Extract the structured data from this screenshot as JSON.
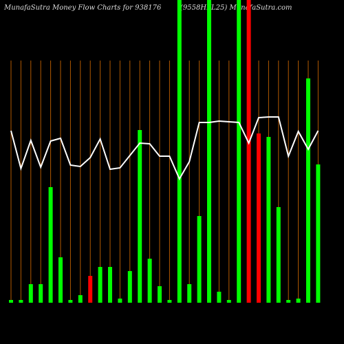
{
  "chart_data": {
    "type": "bar",
    "title": "MunafaSutra  Money Flow  Charts for 938176",
    "subtitle": "(9558HFL25) MunafaSutra.com",
    "categories": [
      null,
      null,
      null,
      null,
      null,
      null,
      null,
      null,
      null,
      null,
      null,
      null,
      null,
      null,
      null,
      null,
      null,
      null,
      null,
      null,
      null,
      null,
      null,
      null,
      null,
      null,
      null,
      null,
      null,
      null,
      null,
      null
    ],
    "ylim": [
      0,
      440
    ],
    "series": [
      {
        "type": "bar",
        "colors": [
          "#00ff00",
          "#00ff00",
          "#00ff00",
          "#00ff00",
          "#00ff00",
          "#00ff00",
          "#00ff00",
          "#00ff00",
          "#ff0000",
          "#00ff00",
          "#00ff00",
          "#00ff00",
          "#00ff00",
          "#00ff00",
          "#00ff00",
          "#00ff00",
          "#00ff00",
          "#00ff00",
          "#00ff00",
          "#00ff00",
          "#00ff00",
          "#00ff00",
          "#00ff00",
          "#00ff00",
          "#ff0000",
          "#ff0000",
          "#00ff00",
          "#00ff00",
          "#00ff00",
          "#00ff00",
          "#00ff00",
          "#00ff00"
        ],
        "values": [
          4,
          4,
          27,
          27,
          168,
          66,
          4,
          11,
          39,
          52,
          52,
          6,
          46,
          251,
          64,
          24,
          4,
          440,
          27,
          126,
          440,
          16,
          4,
          440,
          440,
          246,
          241,
          139,
          4,
          6,
          326,
          201
        ]
      },
      {
        "type": "line",
        "color": "#ffffff",
        "values": [
          250,
          195,
          236,
          197,
          235,
          239,
          200,
          198,
          211,
          238,
          194,
          196,
          214,
          232,
          231,
          213,
          213,
          180,
          205,
          262,
          262,
          264,
          263,
          262,
          232,
          269,
          270,
          270,
          213,
          249,
          223,
          250
        ]
      }
    ]
  }
}
